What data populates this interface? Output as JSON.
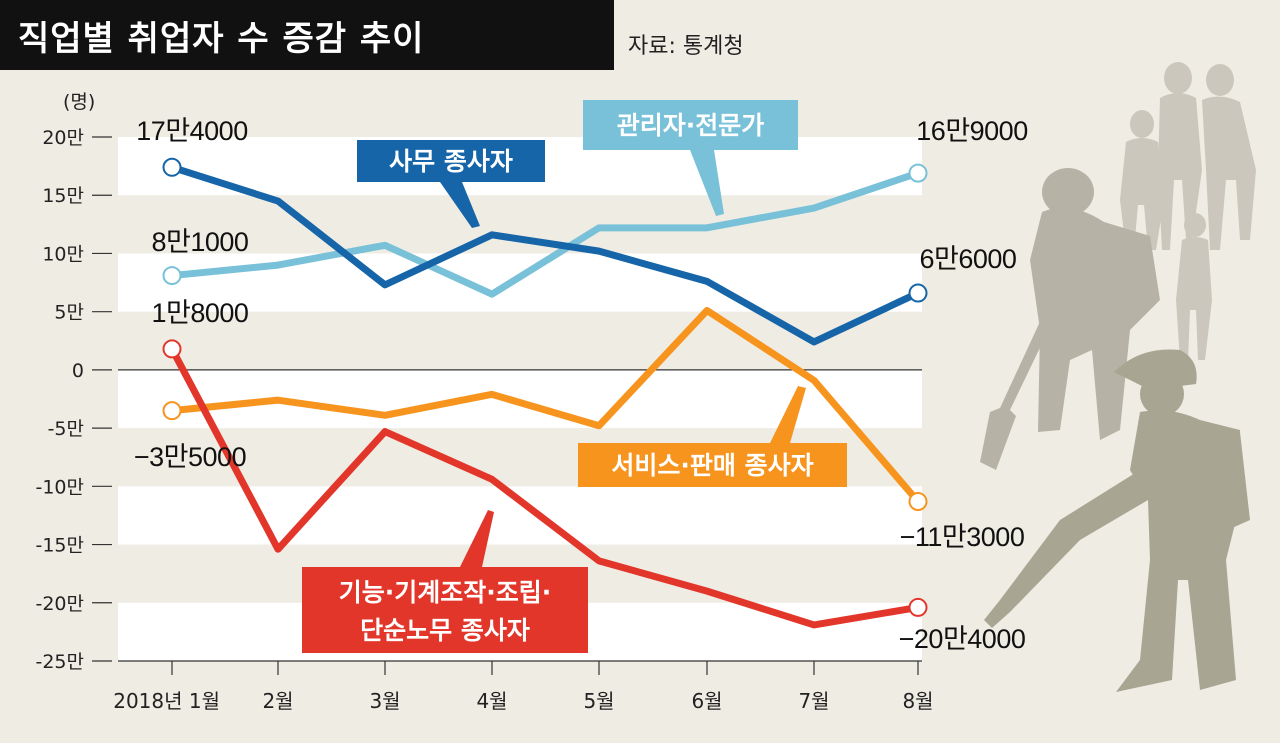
{
  "header": {
    "title": "직업별 취업자 수 증감 추이",
    "source": "자료: 통계청"
  },
  "chart_data": {
    "type": "line",
    "title": "직업별 취업자 수 증감 추이",
    "y_unit": "(명)",
    "ylim": [
      -25,
      20
    ],
    "y_ticks": [
      {
        "value": 20,
        "label": "20만"
      },
      {
        "value": 15,
        "label": "15만"
      },
      {
        "value": 10,
        "label": "10만"
      },
      {
        "value": 5,
        "label": "5만"
      },
      {
        "value": 0,
        "label": "0"
      },
      {
        "value": -5,
        "label": "-5만"
      },
      {
        "value": -10,
        "label": "-10만"
      },
      {
        "value": -15,
        "label": "-15만"
      },
      {
        "value": -20,
        "label": "-20만"
      },
      {
        "value": -25,
        "label": "-25만"
      }
    ],
    "categories": [
      "2018년 1월",
      "2월",
      "3월",
      "4월",
      "5월",
      "6월",
      "7월",
      "8월"
    ],
    "series": [
      {
        "name": "사무 종사자",
        "color": "#1565a8",
        "values": [
          17.4,
          14.5,
          7.3,
          11.6,
          10.2,
          7.6,
          2.4,
          6.6
        ],
        "start_label": "17만4000",
        "end_label": "6만6000"
      },
      {
        "name": "관리자·전문가",
        "color": "#79c1d8",
        "values": [
          8.1,
          9.0,
          10.7,
          6.5,
          12.2,
          12.2,
          13.9,
          16.9
        ],
        "start_label": "8만1000",
        "end_label": "16만9000"
      },
      {
        "name": "서비스·판매 종사자",
        "color": "#f7941e",
        "values": [
          -3.5,
          -2.6,
          -3.9,
          -2.1,
          -4.8,
          5.1,
          -0.9,
          -11.3
        ],
        "start_label": "−3만5000",
        "end_label": "−11만3000"
      },
      {
        "name": "기능·기계조작·조립·단순노무 종사자",
        "name_lines": [
          "기능·기계조작·조립·",
          "단순노무 종사자"
        ],
        "color": "#e3362b",
        "values": [
          1.8,
          -15.4,
          -5.3,
          -9.4,
          -16.4,
          -19.0,
          -21.9,
          -20.4
        ],
        "start_label": "1만8000",
        "end_label": "−20만4000"
      }
    ],
    "grid": "alternating horizontal bands"
  }
}
